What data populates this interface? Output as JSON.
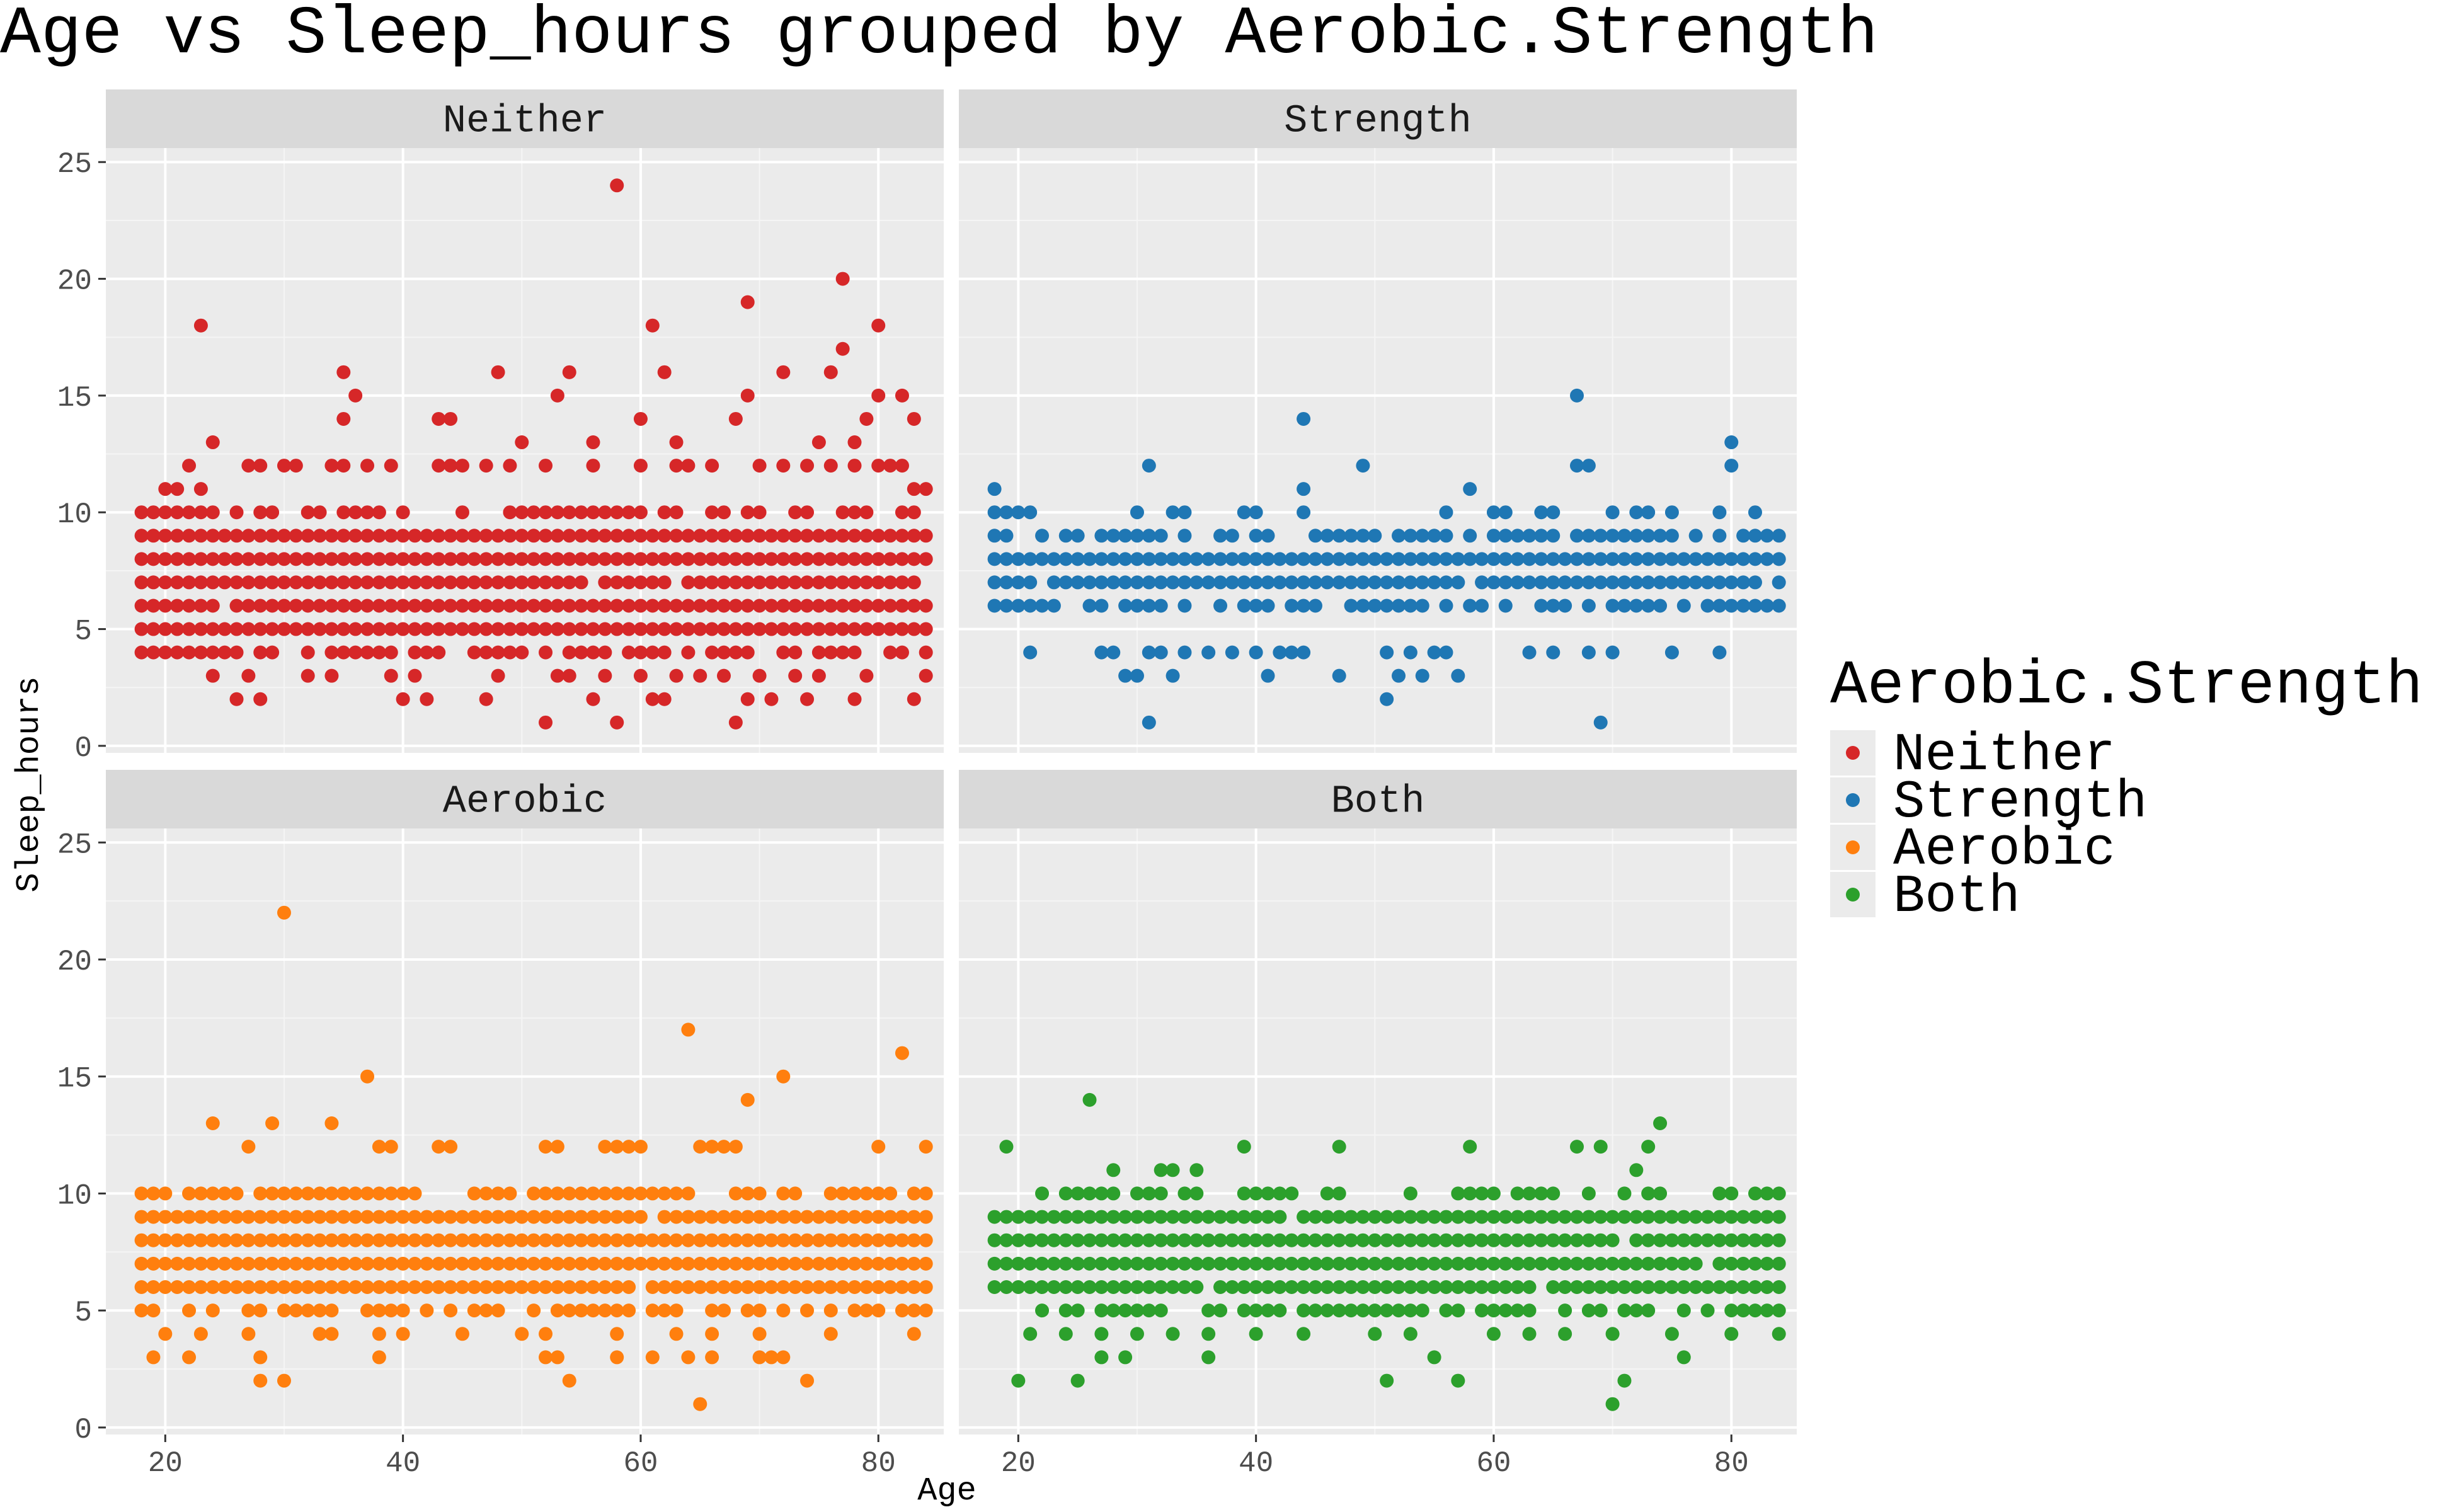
{
  "chart_data": {
    "type": "scatter",
    "title": "Age vs Sleep_hours grouped by Aerobic.Strength",
    "xlabel": "Age",
    "ylabel": "Sleep_hours",
    "xlim": [
      15,
      85.5
    ],
    "ylim": [
      -0.3,
      25.6
    ],
    "x_ticks": [
      20,
      40,
      60,
      80
    ],
    "y_ticks": [
      0,
      5,
      10,
      15,
      20,
      25
    ],
    "grid": true,
    "legend": {
      "title": "Aerobic.Strength",
      "placement": "right"
    },
    "facets": [
      {
        "name": "Neither",
        "color": "#d62728",
        "x_range": [
          18,
          84
        ],
        "band": [
          4,
          10
        ],
        "outliers": [
          [
            23,
            18
          ],
          [
            24,
            13
          ],
          [
            35,
            16
          ],
          [
            35,
            14
          ],
          [
            36,
            15
          ],
          [
            43,
            14
          ],
          [
            44,
            14
          ],
          [
            48,
            16
          ],
          [
            50,
            13
          ],
          [
            53,
            15
          ],
          [
            54,
            16
          ],
          [
            56,
            13
          ],
          [
            58,
            24
          ],
          [
            60,
            14
          ],
          [
            61,
            18
          ],
          [
            62,
            16
          ],
          [
            63,
            13
          ],
          [
            68,
            14
          ],
          [
            69,
            19
          ],
          [
            69,
            15
          ],
          [
            72,
            16
          ],
          [
            75,
            13
          ],
          [
            76,
            16
          ],
          [
            77,
            20
          ],
          [
            77,
            17
          ],
          [
            78,
            13
          ],
          [
            79,
            14
          ],
          [
            80,
            18
          ],
          [
            80,
            15
          ],
          [
            82,
            15
          ],
          [
            83,
            14
          ],
          [
            26,
            2
          ],
          [
            28,
            2
          ],
          [
            47,
            2
          ],
          [
            52,
            1
          ],
          [
            56,
            2
          ],
          [
            58,
            1
          ],
          [
            61,
            2
          ],
          [
            62,
            2
          ],
          [
            68,
            1
          ],
          [
            69,
            2
          ],
          [
            71,
            2
          ],
          [
            74,
            2
          ],
          [
            78,
            2
          ],
          [
            83,
            2
          ],
          [
            84,
            3
          ],
          [
            27,
            3
          ],
          [
            40,
            2
          ],
          [
            42,
            2
          ]
        ],
        "highs": [
          [
            20,
            11
          ],
          [
            21,
            11
          ],
          [
            22,
            12
          ],
          [
            23,
            11
          ],
          [
            27,
            12
          ],
          [
            28,
            12
          ],
          [
            30,
            12
          ],
          [
            31,
            12
          ],
          [
            34,
            12
          ],
          [
            35,
            12
          ],
          [
            37,
            12
          ],
          [
            39,
            12
          ],
          [
            43,
            12
          ],
          [
            44,
            12
          ],
          [
            45,
            12
          ],
          [
            47,
            12
          ],
          [
            49,
            12
          ],
          [
            52,
            12
          ],
          [
            56,
            12
          ],
          [
            60,
            12
          ],
          [
            63,
            12
          ],
          [
            64,
            12
          ],
          [
            66,
            12
          ],
          [
            70,
            12
          ],
          [
            72,
            12
          ],
          [
            74,
            12
          ],
          [
            76,
            12
          ],
          [
            78,
            12
          ],
          [
            80,
            12
          ],
          [
            81,
            12
          ],
          [
            82,
            12
          ],
          [
            83,
            11
          ],
          [
            84,
            11
          ]
        ],
        "lows": [
          [
            19,
            4
          ],
          [
            20,
            4
          ],
          [
            21,
            4
          ],
          [
            24,
            3
          ],
          [
            32,
            3
          ],
          [
            34,
            3
          ],
          [
            39,
            3
          ],
          [
            41,
            3
          ],
          [
            48,
            3
          ],
          [
            53,
            3
          ],
          [
            54,
            3
          ],
          [
            57,
            3
          ],
          [
            60,
            3
          ],
          [
            63,
            3
          ],
          [
            65,
            3
          ],
          [
            67,
            3
          ],
          [
            70,
            3
          ],
          [
            73,
            3
          ],
          [
            75,
            3
          ],
          [
            79,
            3
          ]
        ]
      },
      {
        "name": "Strength",
        "color": "#1f77b4",
        "x_range": [
          18,
          84
        ],
        "band": [
          6,
          9
        ],
        "outliers": [
          [
            31,
            12
          ],
          [
            44,
            14
          ],
          [
            44,
            11
          ],
          [
            49,
            12
          ],
          [
            58,
            11
          ],
          [
            67,
            15
          ],
          [
            67,
            12
          ],
          [
            68,
            12
          ],
          [
            80,
            13
          ],
          [
            80,
            12
          ],
          [
            31,
            1
          ],
          [
            69,
            1
          ],
          [
            51,
            2
          ],
          [
            52,
            3
          ],
          [
            47,
            3
          ],
          [
            29,
            3
          ],
          [
            30,
            3
          ]
        ],
        "highs": [
          [
            18,
            11
          ],
          [
            18,
            10
          ],
          [
            19,
            10
          ],
          [
            20,
            10
          ],
          [
            21,
            10
          ],
          [
            30,
            10
          ],
          [
            33,
            10
          ],
          [
            34,
            10
          ],
          [
            39,
            10
          ],
          [
            40,
            10
          ],
          [
            44,
            10
          ],
          [
            56,
            10
          ],
          [
            60,
            10
          ],
          [
            61,
            10
          ],
          [
            64,
            10
          ],
          [
            65,
            10
          ],
          [
            70,
            10
          ],
          [
            72,
            10
          ],
          [
            73,
            10
          ],
          [
            75,
            10
          ],
          [
            79,
            10
          ],
          [
            82,
            10
          ]
        ],
        "lows": [
          [
            21,
            4
          ],
          [
            27,
            4
          ],
          [
            28,
            4
          ],
          [
            31,
            4
          ],
          [
            32,
            4
          ],
          [
            34,
            4
          ],
          [
            36,
            4
          ],
          [
            38,
            4
          ],
          [
            40,
            4
          ],
          [
            42,
            4
          ],
          [
            43,
            4
          ],
          [
            44,
            4
          ],
          [
            51,
            4
          ],
          [
            53,
            4
          ],
          [
            55,
            4
          ],
          [
            56,
            4
          ],
          [
            63,
            4
          ],
          [
            65,
            4
          ],
          [
            68,
            4
          ],
          [
            70,
            4
          ],
          [
            75,
            4
          ],
          [
            79,
            4
          ],
          [
            33,
            3
          ],
          [
            41,
            3
          ],
          [
            54,
            3
          ],
          [
            57,
            3
          ]
        ]
      },
      {
        "name": "Aerobic",
        "color": "#ff7f0e",
        "x_range": [
          18,
          84
        ],
        "band": [
          5,
          10
        ],
        "outliers": [
          [
            30,
            22
          ],
          [
            64,
            17
          ],
          [
            82,
            16
          ],
          [
            37,
            15
          ],
          [
            72,
            15
          ],
          [
            69,
            14
          ],
          [
            24,
            13
          ],
          [
            29,
            13
          ],
          [
            34,
            13
          ],
          [
            65,
            12
          ],
          [
            66,
            12
          ],
          [
            27,
            12
          ],
          [
            38,
            12
          ],
          [
            39,
            12
          ],
          [
            43,
            12
          ],
          [
            44,
            12
          ],
          [
            52,
            12
          ],
          [
            53,
            12
          ],
          [
            57,
            12
          ],
          [
            58,
            12
          ],
          [
            59,
            12
          ],
          [
            60,
            12
          ],
          [
            67,
            12
          ],
          [
            68,
            12
          ],
          [
            80,
            12
          ],
          [
            84,
            12
          ],
          [
            28,
            2
          ],
          [
            30,
            2
          ],
          [
            54,
            2
          ],
          [
            65,
            1
          ],
          [
            74,
            2
          ],
          [
            19,
            3
          ],
          [
            22,
            3
          ],
          [
            28,
            3
          ],
          [
            38,
            3
          ],
          [
            52,
            3
          ],
          [
            53,
            3
          ],
          [
            58,
            3
          ],
          [
            61,
            3
          ],
          [
            64,
            3
          ],
          [
            66,
            3
          ],
          [
            70,
            3
          ],
          [
            71,
            3
          ],
          [
            72,
            3
          ]
        ],
        "highs": [
          [
            18,
            10
          ],
          [
            23,
            10
          ],
          [
            26,
            10
          ],
          [
            29,
            10
          ],
          [
            31,
            10
          ],
          [
            35,
            10
          ],
          [
            38,
            10
          ],
          [
            41,
            10
          ],
          [
            47,
            10
          ],
          [
            55,
            10
          ],
          [
            60,
            10
          ],
          [
            63,
            10
          ],
          [
            69,
            10
          ],
          [
            72,
            10
          ],
          [
            77,
            10
          ],
          [
            81,
            10
          ],
          [
            84,
            10
          ]
        ],
        "lows": [
          [
            20,
            4
          ],
          [
            23,
            4
          ],
          [
            27,
            4
          ],
          [
            34,
            4
          ],
          [
            38,
            4
          ],
          [
            45,
            4
          ],
          [
            52,
            4
          ],
          [
            58,
            4
          ],
          [
            63,
            4
          ],
          [
            70,
            4
          ],
          [
            76,
            4
          ],
          [
            83,
            4
          ],
          [
            33,
            4
          ],
          [
            40,
            4
          ],
          [
            50,
            4
          ],
          [
            66,
            4
          ]
        ]
      },
      {
        "name": "Both",
        "color": "#2ca02c",
        "x_range": [
          18,
          84
        ],
        "band": [
          5,
          10
        ],
        "outliers": [
          [
            26,
            14
          ],
          [
            74,
            13
          ],
          [
            19,
            12
          ],
          [
            39,
            12
          ],
          [
            47,
            12
          ],
          [
            58,
            12
          ],
          [
            67,
            12
          ],
          [
            69,
            12
          ],
          [
            73,
            12
          ],
          [
            28,
            11
          ],
          [
            32,
            11
          ],
          [
            33,
            11
          ],
          [
            35,
            11
          ],
          [
            72,
            11
          ],
          [
            20,
            2
          ],
          [
            25,
            2
          ],
          [
            70,
            1
          ],
          [
            71,
            2
          ],
          [
            51,
            2
          ],
          [
            57,
            2
          ],
          [
            27,
            3
          ],
          [
            29,
            3
          ],
          [
            36,
            3
          ],
          [
            55,
            3
          ],
          [
            76,
            3
          ]
        ],
        "highs": [],
        "lows": [
          [
            21,
            4
          ],
          [
            24,
            4
          ],
          [
            27,
            4
          ],
          [
            30,
            4
          ],
          [
            33,
            4
          ],
          [
            36,
            4
          ],
          [
            40,
            4
          ],
          [
            44,
            4
          ],
          [
            50,
            4
          ],
          [
            53,
            4
          ],
          [
            60,
            4
          ],
          [
            63,
            4
          ],
          [
            66,
            4
          ],
          [
            70,
            4
          ],
          [
            75,
            4
          ],
          [
            80,
            4
          ],
          [
            84,
            4
          ]
        ]
      }
    ]
  }
}
